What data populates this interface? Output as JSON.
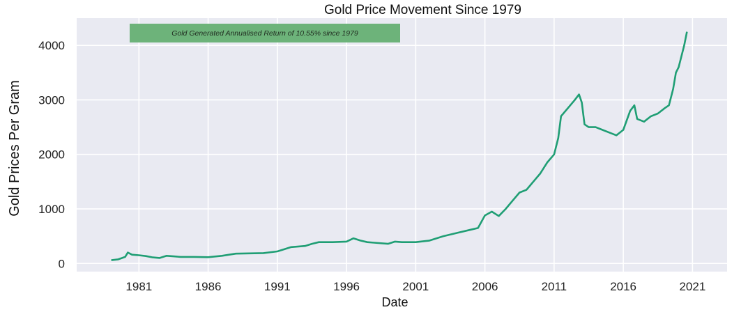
{
  "chart_data": {
    "type": "line",
    "title": "Gold Price Movement Since 1979",
    "xlabel": "Date",
    "ylabel": "Gold Prices Per Gram",
    "xlim": [
      1976.5,
      2023.5
    ],
    "ylim": [
      -150,
      4500
    ],
    "x_ticks": [
      1981,
      1986,
      1991,
      1996,
      2001,
      2006,
      2011,
      2016,
      2021
    ],
    "y_ticks": [
      0,
      1000,
      2000,
      3000,
      4000
    ],
    "grid": true,
    "background": "#e9eaf2",
    "line_color": "#1f9e74",
    "annotation": {
      "text": "Gold Generated Annualised Return of 10.55% since 1979",
      "background": "#6db37a"
    },
    "series": [
      {
        "x": [
          1979.0,
          1979.5,
          1980.0,
          1980.2,
          1980.5,
          1981.0,
          1981.5,
          1982.0,
          1982.5,
          1983.0,
          1983.5,
          1984.0,
          1985.0,
          1986.0,
          1987.0,
          1988.0,
          1989.0,
          1990.0,
          1991.0,
          1991.5,
          1992.0,
          1993.0,
          1993.5,
          1994.0,
          1995.0,
          1996.0,
          1996.5,
          1997.0,
          1997.5,
          1998.0,
          1999.0,
          1999.5,
          2000.0,
          2001.0,
          2002.0,
          2003.0,
          2004.0,
          2005.0,
          2005.5,
          2006.0,
          2006.5,
          2007.0,
          2007.5,
          2008.0,
          2008.5,
          2009.0,
          2009.5,
          2010.0,
          2010.5,
          2011.0,
          2011.3,
          2011.5,
          2012.0,
          2012.5,
          2012.8,
          2013.0,
          2013.2,
          2013.5,
          2014.0,
          2014.5,
          2015.0,
          2015.5,
          2016.0,
          2016.5,
          2016.8,
          2017.0,
          2017.5,
          2018.0,
          2018.5,
          2019.0,
          2019.3,
          2019.6,
          2019.8,
          2020.0,
          2020.2,
          2020.4,
          2020.6
        ],
        "values": [
          60,
          75,
          120,
          200,
          160,
          150,
          135,
          110,
          100,
          140,
          130,
          120,
          120,
          115,
          140,
          180,
          185,
          190,
          220,
          260,
          300,
          320,
          360,
          390,
          390,
          400,
          460,
          420,
          390,
          380,
          360,
          400,
          390,
          390,
          420,
          500,
          560,
          620,
          650,
          880,
          950,
          870,
          1000,
          1150,
          1300,
          1350,
          1500,
          1650,
          1850,
          2000,
          2300,
          2700,
          2850,
          3000,
          3100,
          2950,
          2550,
          2500,
          2500,
          2450,
          2400,
          2350,
          2450,
          2800,
          2900,
          2650,
          2600,
          2700,
          2750,
          2850,
          2900,
          3200,
          3500,
          3600,
          3800,
          4000,
          4250
        ]
      }
    ]
  }
}
